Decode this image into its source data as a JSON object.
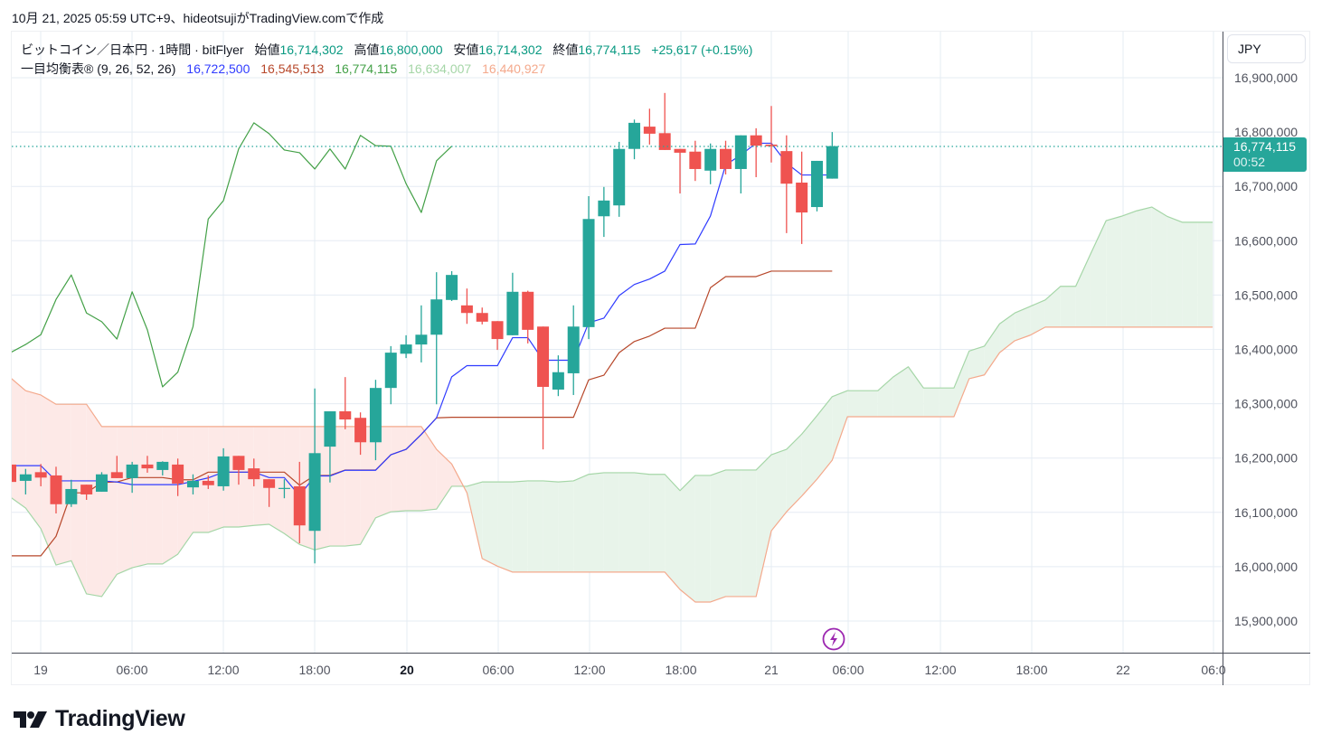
{
  "credit": "10月 21, 2025 05:59 UTC+9、hideotsujiがTradingView.comで作成",
  "legend": {
    "symbol": "ビットコイン／日本円 · 1時間 · bitFlyer",
    "open_label": "始値",
    "open": "16,714,302",
    "high_label": "高値",
    "high": "16,800,000",
    "low_label": "安値",
    "low": "16,714,302",
    "close_label": "終値",
    "close": "16,774,115",
    "change": "+25,617 (+0.15%)",
    "indicator": "一目均衡表®",
    "params": "(9, 26, 52, 26)",
    "tenkan": "16,722,500",
    "kijun": "16,545,513",
    "chikou": "16,774,115",
    "span_a": "16,634,007",
    "span_b": "16,440,927"
  },
  "currency": "JPY",
  "current_price": {
    "value": "16,774,115",
    "countdown": "00:52"
  },
  "brand": "TradingView",
  "colors": {
    "up": "#26a69a",
    "down": "#ef5350",
    "tenkan": "#2f3bff",
    "kijun": "#b7472a",
    "chikou": "#43a047",
    "span_a": "#a5d6a7",
    "span_b": "#f4a98c",
    "cloud_up": "#e8f4ea",
    "cloud_down": "#fde9e7",
    "grid": "#e5ecf3",
    "event": "#9c27b0"
  },
  "chart_data": {
    "type": "candlestick",
    "title": "ビットコイン／日本円 · 1時間 · bitFlyer",
    "ylim": [
      15850000,
      16990000
    ],
    "y_ticks": [
      "16,900,000",
      "16,800,000",
      "16,700,000",
      "16,600,000",
      "16,500,000",
      "16,400,000",
      "16,300,000",
      "16,200,000",
      "16,100,000",
      "16,000,000",
      "15,900,000"
    ],
    "y_tick_values": [
      16900000,
      16800000,
      16700000,
      16600000,
      16500000,
      16400000,
      16300000,
      16200000,
      16100000,
      16000000,
      15900000
    ],
    "x_ticks": [
      "19",
      "06:00",
      "12:00",
      "18:00",
      "20",
      "06:00",
      "12:00",
      "18:00",
      "21",
      "06:00",
      "12:00",
      "18:00",
      "22",
      "06:0"
    ],
    "x_ticks_bold": [
      false,
      false,
      false,
      false,
      true,
      false,
      false,
      false,
      false,
      false,
      false,
      false,
      false,
      false
    ],
    "interval": "1h",
    "ohlc": [
      [
        16188000,
        16190000,
        16150000,
        16156000
      ],
      [
        16158000,
        16180000,
        16133000,
        16170000
      ],
      [
        16174000,
        16189000,
        16148000,
        16164000
      ],
      [
        16168000,
        16184000,
        16098000,
        16115000
      ],
      [
        16115000,
        16160000,
        16110000,
        16143000
      ],
      [
        16151000,
        16151000,
        16123000,
        16133000
      ],
      [
        16138000,
        16174000,
        16138000,
        16170000
      ],
      [
        16174000,
        16204000,
        16163000,
        16163000
      ],
      [
        16163000,
        16193000,
        16136000,
        16188000
      ],
      [
        16188000,
        16204000,
        16173000,
        16181000
      ],
      [
        16178000,
        16194000,
        16168000,
        16193000
      ],
      [
        16188000,
        16199000,
        16130000,
        16153000
      ],
      [
        16146000,
        16170000,
        16133000,
        16158000
      ],
      [
        16158000,
        16168000,
        16143000,
        16150000
      ],
      [
        16148000,
        16218000,
        16140000,
        16203000
      ],
      [
        16204000,
        16204000,
        16151000,
        16178000
      ],
      [
        16181000,
        16199000,
        16148000,
        16161000
      ],
      [
        16161000,
        16161000,
        16110000,
        16145000
      ],
      [
        16143000,
        16161000,
        16126000,
        16145000
      ],
      [
        16148000,
        16193000,
        16043000,
        16076000
      ],
      [
        16066000,
        16328000,
        16006000,
        16209000
      ],
      [
        16221000,
        16286000,
        16155000,
        16286000
      ],
      [
        16286000,
        16349000,
        16253000,
        16271000
      ],
      [
        16274000,
        16284000,
        16206000,
        16229000
      ],
      [
        16229000,
        16344000,
        16196000,
        16329000
      ],
      [
        16329000,
        16406000,
        16299000,
        16394000
      ],
      [
        16392000,
        16426000,
        16384000,
        16409000
      ],
      [
        16409000,
        16481000,
        16376000,
        16427000
      ],
      [
        16427000,
        16542000,
        16299000,
        16492000
      ],
      [
        16491000,
        16544000,
        16489000,
        16537000
      ],
      [
        16481000,
        16512000,
        16447000,
        16467000
      ],
      [
        16467000,
        16477000,
        16446000,
        16451000
      ],
      [
        16452000,
        16452000,
        16399000,
        16419000
      ],
      [
        16426000,
        16541000,
        16426000,
        16506000
      ],
      [
        16506000,
        16508000,
        16411000,
        16436000
      ],
      [
        16442000,
        16442000,
        16216000,
        16331000
      ],
      [
        16326000,
        16389000,
        16314000,
        16358000
      ],
      [
        16356000,
        16481000,
        16316000,
        16442000
      ],
      [
        16441000,
        16682000,
        16419000,
        16640000
      ],
      [
        16645000,
        16699000,
        16607000,
        16674000
      ],
      [
        16665000,
        16782000,
        16644000,
        16769000
      ],
      [
        16769000,
        16823000,
        16750000,
        16817000
      ],
      [
        16810000,
        16843000,
        16777000,
        16797000
      ],
      [
        16798000,
        16872000,
        16767000,
        16767000
      ],
      [
        16769000,
        16769000,
        16687000,
        16762000
      ],
      [
        16764000,
        16784000,
        16710000,
        16732000
      ],
      [
        16729000,
        16779000,
        16704000,
        16769000
      ],
      [
        16769000,
        16784000,
        16722000,
        16732000
      ],
      [
        16732000,
        16794000,
        16687000,
        16794000
      ],
      [
        16794000,
        16807000,
        16717000,
        16775000
      ],
      [
        16777000,
        16848000,
        16744000,
        16774000
      ],
      [
        16765000,
        16794000,
        16614000,
        16705000
      ],
      [
        16707000,
        16764000,
        16594000,
        16652000
      ],
      [
        16662000,
        16747000,
        16654000,
        16747000
      ],
      [
        16714302,
        16800000,
        16714302,
        16774115
      ]
    ],
    "ichimoku": {
      "tenkan_period": 9,
      "kijun_period": 26,
      "span_b_period": 52,
      "displacement": 26,
      "tenkan_leading": [
        16186000,
        16186000,
        16186000,
        16158000,
        16158000,
        16158000,
        16158000,
        16156000
      ],
      "kijun_leading": [
        16020000,
        16020000,
        16020000,
        16056000,
        16136000,
        16136000,
        16155000,
        16156000,
        16164000,
        16164000,
        16164000,
        16160000,
        16160000,
        16174000,
        16174000,
        16174000,
        16174000,
        16174000,
        16174000,
        16150000,
        16168000,
        16168000,
        16178000,
        16178000,
        16178000
      ],
      "span_a": [
        16128000,
        16108000,
        16070000,
        16003000,
        16011000,
        15950000,
        15945000,
        15986000,
        15998000,
        16005000,
        16005000,
        16023000,
        16063000,
        16063000,
        16073000,
        16073000,
        16076000,
        16078000,
        16061000,
        16041000,
        16031000,
        16038000,
        16038000,
        16041000,
        16090000,
        16101000,
        16103000,
        16103000,
        16106000,
        16148000,
        16148000,
        16156000,
        16156000,
        16156000,
        16158000,
        16158000,
        16156000,
        16158000,
        16170000,
        16173000,
        16173000,
        16173000,
        16170000,
        16170000,
        16140000,
        16168000,
        16168000,
        16178000,
        16178000,
        16178000,
        16206000,
        16216000,
        16244000,
        16278000,
        16313000,
        16324000,
        16324000,
        16324000,
        16349000,
        16368000,
        16329000,
        16329000,
        16329000,
        16397000,
        16406000,
        16447000,
        16467000,
        16479000,
        16491000,
        16516000,
        16516000,
        16577000,
        16637000,
        16645000,
        16655000,
        16662000,
        16645000,
        16634007,
        16634007,
        16634007
      ],
      "span_b": [
        16348000,
        16324000,
        16316000,
        16299000,
        16299000,
        16299000,
        16258000,
        16258000,
        16258000,
        16258000,
        16258000,
        16258000,
        16258000,
        16258000,
        16258000,
        16258000,
        16258000,
        16258000,
        16258000,
        16258000,
        16258000,
        16258000,
        16258000,
        16258000,
        16258000,
        16258000,
        16258000,
        16258000,
        16216000,
        16189000,
        16136000,
        16015000,
        16001000,
        15990000,
        15990000,
        15990000,
        15990000,
        15990000,
        15990000,
        15990000,
        15990000,
        15990000,
        15990000,
        15990000,
        15958000,
        15935000,
        15935000,
        15945000,
        15945000,
        15945000,
        16066000,
        16101000,
        16130000,
        16161000,
        16196000,
        16276000,
        16276000,
        16276000,
        16276000,
        16276000,
        16276000,
        16276000,
        16276000,
        16346000,
        16353000,
        16394000,
        16416000,
        16426000,
        16440927,
        16440927,
        16440927,
        16440927,
        16440927,
        16440927,
        16440927,
        16440927,
        16440927,
        16440927,
        16440927,
        16440927
      ]
    }
  }
}
